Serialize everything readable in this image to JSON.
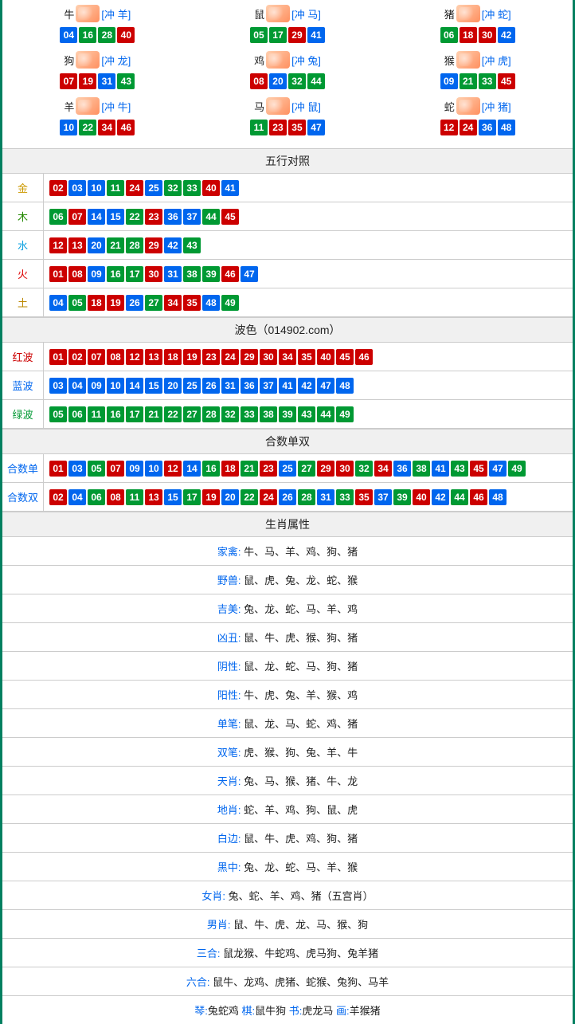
{
  "colors": {
    "red": "#cc0000",
    "blue": "#0066ee",
    "green": "#009933",
    "border": "#cccccc",
    "header_bg": "#f0f0f0",
    "outer_border": "#008060"
  },
  "ball_colors_by_num": {
    "01": "red",
    "02": "red",
    "07": "red",
    "08": "red",
    "12": "red",
    "13": "red",
    "18": "red",
    "19": "red",
    "23": "red",
    "24": "red",
    "29": "red",
    "30": "red",
    "34": "red",
    "35": "red",
    "40": "red",
    "45": "red",
    "46": "red",
    "03": "blue",
    "04": "blue",
    "09": "blue",
    "10": "blue",
    "14": "blue",
    "15": "blue",
    "20": "blue",
    "25": "blue",
    "26": "blue",
    "31": "blue",
    "36": "blue",
    "37": "blue",
    "41": "blue",
    "42": "blue",
    "47": "blue",
    "48": "blue",
    "05": "green",
    "06": "green",
    "11": "green",
    "16": "green",
    "17": "green",
    "21": "green",
    "22": "green",
    "27": "green",
    "28": "green",
    "32": "green",
    "33": "green",
    "38": "green",
    "39": "green",
    "43": "green",
    "44": "green",
    "49": "green"
  },
  "zodiac": [
    {
      "name": "牛",
      "chong": "[冲 羊]",
      "balls": [
        "04",
        "16",
        "28",
        "40"
      ]
    },
    {
      "name": "鼠",
      "chong": "[冲 马]",
      "balls": [
        "05",
        "17",
        "29",
        "41"
      ]
    },
    {
      "name": "猪",
      "chong": "[冲 蛇]",
      "balls": [
        "06",
        "18",
        "30",
        "42"
      ]
    },
    {
      "name": "狗",
      "chong": "[冲 龙]",
      "balls": [
        "07",
        "19",
        "31",
        "43"
      ]
    },
    {
      "name": "鸡",
      "chong": "[冲 兔]",
      "balls": [
        "08",
        "20",
        "32",
        "44"
      ]
    },
    {
      "name": "猴",
      "chong": "[冲 虎]",
      "balls": [
        "09",
        "21",
        "33",
        "45"
      ]
    },
    {
      "name": "羊",
      "chong": "[冲 牛]",
      "balls": [
        "10",
        "22",
        "34",
        "46"
      ]
    },
    {
      "name": "马",
      "chong": "[冲 鼠]",
      "balls": [
        "11",
        "23",
        "35",
        "47"
      ]
    },
    {
      "name": "蛇",
      "chong": "[冲 猪]",
      "balls": [
        "12",
        "24",
        "36",
        "48"
      ]
    }
  ],
  "sections": {
    "wuxing": {
      "title": "五行对照",
      "rows": [
        {
          "label": "金",
          "label_class": "lbl-gold",
          "balls": [
            "02",
            "03",
            "10",
            "11",
            "24",
            "25",
            "32",
            "33",
            "40",
            "41"
          ]
        },
        {
          "label": "木",
          "label_class": "lbl-wood",
          "balls": [
            "06",
            "07",
            "14",
            "15",
            "22",
            "23",
            "36",
            "37",
            "44",
            "45"
          ]
        },
        {
          "label": "水",
          "label_class": "lbl-water",
          "balls": [
            "12",
            "13",
            "20",
            "21",
            "28",
            "29",
            "42",
            "43"
          ]
        },
        {
          "label": "火",
          "label_class": "lbl-fire",
          "balls": [
            "01",
            "08",
            "09",
            "16",
            "17",
            "30",
            "31",
            "38",
            "39",
            "46",
            "47"
          ]
        },
        {
          "label": "土",
          "label_class": "lbl-earth",
          "balls": [
            "04",
            "05",
            "18",
            "19",
            "26",
            "27",
            "34",
            "35",
            "48",
            "49"
          ]
        }
      ]
    },
    "bose": {
      "title": "波色（014902.com）",
      "rows": [
        {
          "label": "红波",
          "label_class": "lbl-red",
          "balls": [
            "01",
            "02",
            "07",
            "08",
            "12",
            "13",
            "18",
            "19",
            "23",
            "24",
            "29",
            "30",
            "34",
            "35",
            "40",
            "45",
            "46"
          ]
        },
        {
          "label": "蓝波",
          "label_class": "lbl-blue",
          "balls": [
            "03",
            "04",
            "09",
            "10",
            "14",
            "15",
            "20",
            "25",
            "26",
            "31",
            "36",
            "37",
            "41",
            "42",
            "47",
            "48"
          ]
        },
        {
          "label": "绿波",
          "label_class": "lbl-green",
          "balls": [
            "05",
            "06",
            "11",
            "16",
            "17",
            "21",
            "22",
            "27",
            "28",
            "32",
            "33",
            "38",
            "39",
            "43",
            "44",
            "49"
          ]
        }
      ]
    },
    "heshu": {
      "title": "合数单双",
      "rows": [
        {
          "label": "合数单",
          "label_class": "lbl-blue",
          "balls": [
            "01",
            "03",
            "05",
            "07",
            "09",
            "10",
            "12",
            "14",
            "16",
            "18",
            "21",
            "23",
            "25",
            "27",
            "29",
            "30",
            "32",
            "34",
            "36",
            "38",
            "41",
            "43",
            "45",
            "47",
            "49"
          ]
        },
        {
          "label": "合数双",
          "label_class": "lbl-blue",
          "balls": [
            "02",
            "04",
            "06",
            "08",
            "11",
            "13",
            "15",
            "17",
            "19",
            "20",
            "22",
            "24",
            "26",
            "28",
            "31",
            "33",
            "35",
            "37",
            "39",
            "40",
            "42",
            "44",
            "46",
            "48"
          ]
        }
      ]
    },
    "shuxing": {
      "title": "生肖属性",
      "attrs": [
        {
          "key": "家禽:",
          "val": " 牛、马、羊、鸡、狗、猪"
        },
        {
          "key": "野兽:",
          "val": " 鼠、虎、兔、龙、蛇、猴"
        },
        {
          "key": "吉美:",
          "val": " 兔、龙、蛇、马、羊、鸡"
        },
        {
          "key": "凶丑:",
          "val": " 鼠、牛、虎、猴、狗、猪"
        },
        {
          "key": "阴性:",
          "val": " 鼠、龙、蛇、马、狗、猪"
        },
        {
          "key": "阳性:",
          "val": " 牛、虎、兔、羊、猴、鸡"
        },
        {
          "key": "单笔:",
          "val": " 鼠、龙、马、蛇、鸡、猪"
        },
        {
          "key": "双笔:",
          "val": " 虎、猴、狗、兔、羊、牛"
        },
        {
          "key": "天肖:",
          "val": " 兔、马、猴、猪、牛、龙"
        },
        {
          "key": "地肖:",
          "val": " 蛇、羊、鸡、狗、鼠、虎"
        },
        {
          "key": "白边:",
          "val": " 鼠、牛、虎、鸡、狗、猪"
        },
        {
          "key": "黑中:",
          "val": " 兔、龙、蛇、马、羊、猴"
        },
        {
          "key": "女肖:",
          "val": " 兔、蛇、羊、鸡、猪（五宫肖）"
        },
        {
          "key": "男肖:",
          "val": " 鼠、牛、虎、龙、马、猴、狗"
        },
        {
          "key": "三合:",
          "val": " 鼠龙猴、牛蛇鸡、虎马狗、兔羊猪"
        },
        {
          "key": "六合:",
          "val": " 鼠牛、龙鸡、虎猪、蛇猴、兔狗、马羊"
        }
      ],
      "footer_parts": [
        {
          "k": "琴:",
          "v": "兔蛇鸡 "
        },
        {
          "k": "棋:",
          "v": "鼠牛狗 "
        },
        {
          "k": "书:",
          "v": "虎龙马 "
        },
        {
          "k": "画:",
          "v": "羊猴猪"
        }
      ]
    }
  }
}
